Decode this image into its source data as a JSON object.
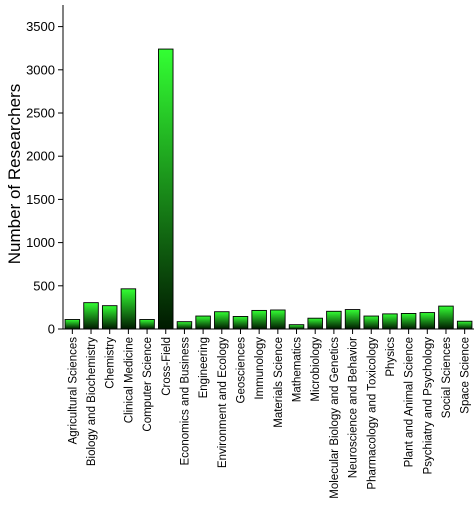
{
  "chart_data": {
    "type": "bar",
    "ylabel": "Number of Researchers",
    "xlabel": "",
    "ylim": [
      0,
      3750
    ],
    "yticks": [
      0,
      500,
      1000,
      1500,
      2000,
      2500,
      3000,
      3500
    ],
    "grid": false,
    "bar_gradient": {
      "top": "#33ff33",
      "bottom_highlight": "#001a00"
    },
    "categories": [
      "Agricultural Sciences",
      "Biology and Biochemistry",
      "Chemistry",
      "Clinical Medicine",
      "Computer Science",
      "Cross-Field",
      "Economics and Business",
      "Engineering",
      "Environment and Ecology",
      "Geosciences",
      "Immunology",
      "Materials Science",
      "Mathematics",
      "Microbiology",
      "Molecular Biology and Genetics",
      "Neuroscience and Behavior",
      "Pharmacology and Toxicology",
      "Physics",
      "Plant and Animal Science",
      "Psychiatry and Psychology",
      "Social Sciences",
      "Space Science"
    ],
    "values": [
      110,
      305,
      270,
      465,
      110,
      3240,
      85,
      150,
      200,
      145,
      215,
      220,
      50,
      125,
      205,
      225,
      150,
      175,
      180,
      190,
      265,
      90
    ]
  }
}
